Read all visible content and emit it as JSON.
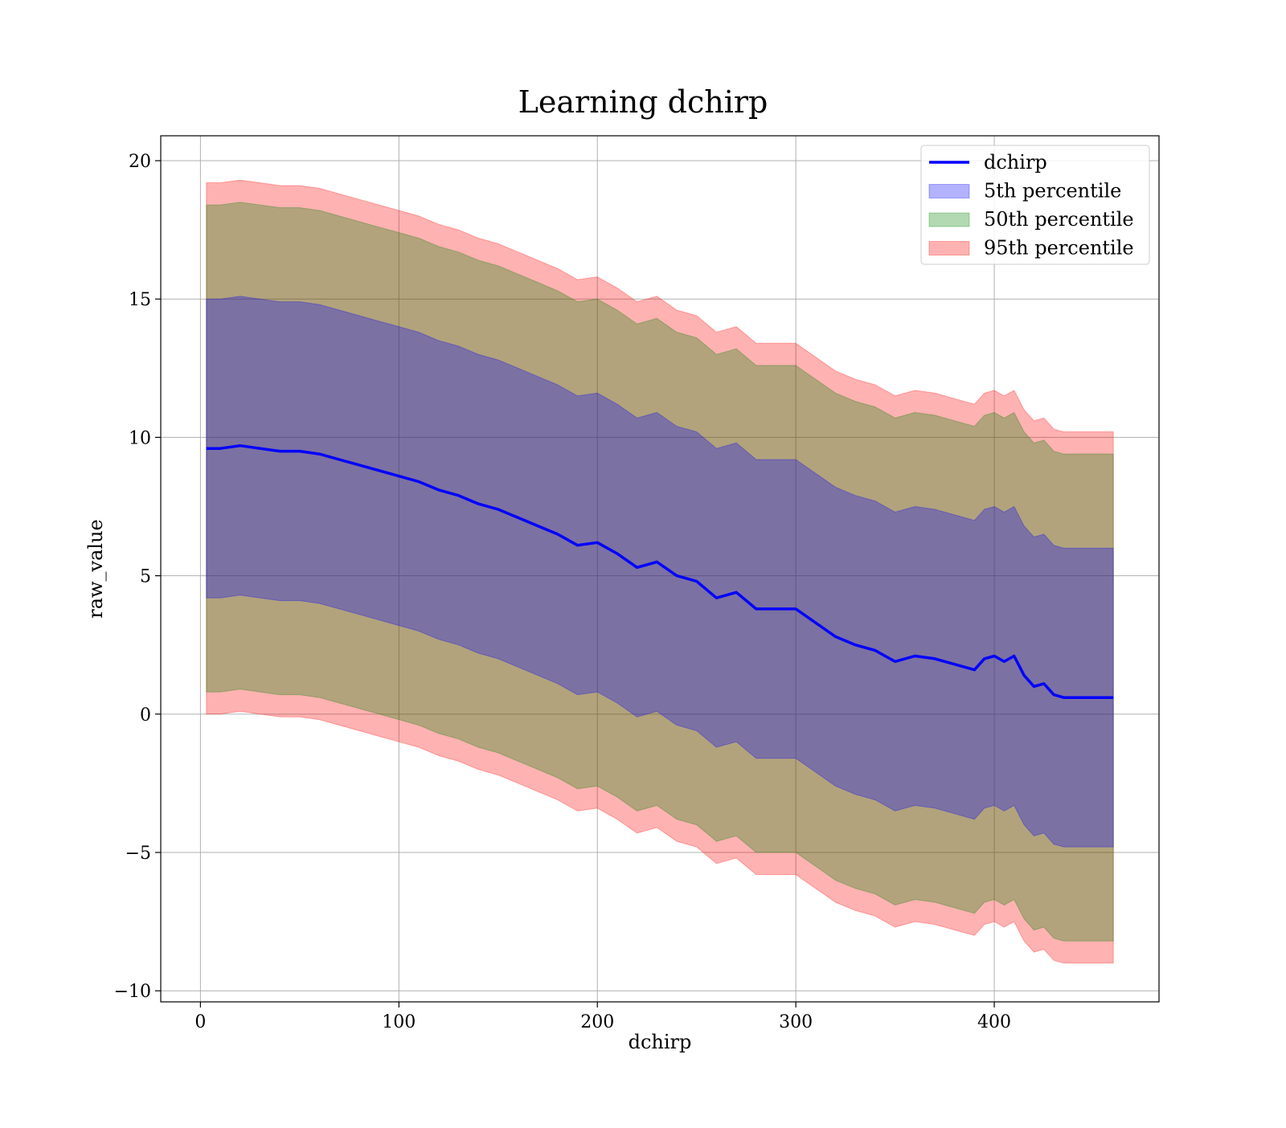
{
  "chart_data": {
    "type": "line",
    "title": "Learning dchirp",
    "xlabel": "dchirp",
    "ylabel": "raw_value",
    "xlim": [
      -20,
      483
    ],
    "ylim": [
      -10.4,
      20.9
    ],
    "x_ticks": [
      0,
      100,
      200,
      300,
      400
    ],
    "y_ticks": [
      -10,
      -5,
      0,
      5,
      10,
      15,
      20
    ],
    "x_tick_labels": [
      "0",
      "100",
      "200",
      "300",
      "400"
    ],
    "y_tick_labels": [
      "−10",
      "−5",
      "0",
      "5",
      "10",
      "15",
      "20"
    ],
    "grid": true,
    "legend_position": "top-right",
    "series": [
      {
        "name": "dchirp",
        "kind": "line",
        "color": "#0000ff",
        "x": [
          3,
          10,
          20,
          30,
          40,
          50,
          60,
          70,
          80,
          90,
          100,
          110,
          120,
          130,
          140,
          150,
          160,
          170,
          180,
          190,
          200,
          210,
          220,
          230,
          240,
          250,
          260,
          270,
          280,
          290,
          300,
          310,
          320,
          330,
          340,
          350,
          360,
          370,
          380,
          390,
          395,
          400,
          405,
          410,
          415,
          420,
          425,
          430,
          435,
          445,
          450,
          460
        ],
        "y": [
          9.6,
          9.6,
          9.7,
          9.6,
          9.5,
          9.5,
          9.4,
          9.2,
          9.0,
          8.8,
          8.6,
          8.4,
          8.1,
          7.9,
          7.6,
          7.4,
          7.1,
          6.8,
          6.5,
          6.1,
          6.2,
          5.8,
          5.3,
          5.5,
          5.0,
          4.8,
          4.2,
          4.4,
          3.8,
          3.8,
          3.8,
          3.3,
          2.8,
          2.5,
          2.3,
          1.9,
          2.1,
          2.0,
          1.8,
          1.6,
          2.0,
          2.1,
          1.9,
          2.1,
          1.4,
          1.0,
          1.1,
          0.7,
          0.6,
          0.6,
          0.6,
          0.6
        ]
      },
      {
        "name": "5th percentile",
        "kind": "band",
        "color": "#0000ff",
        "x": [
          3,
          10,
          20,
          30,
          40,
          50,
          60,
          70,
          80,
          90,
          100,
          110,
          120,
          130,
          140,
          150,
          160,
          170,
          180,
          190,
          200,
          210,
          220,
          230,
          240,
          250,
          260,
          270,
          280,
          290,
          300,
          310,
          320,
          330,
          340,
          350,
          360,
          370,
          380,
          390,
          395,
          400,
          405,
          410,
          415,
          420,
          425,
          430,
          435,
          445,
          450,
          460
        ],
        "upper": [
          15.0,
          15.0,
          15.1,
          15.0,
          14.9,
          14.9,
          14.8,
          14.6,
          14.4,
          14.2,
          14.0,
          13.8,
          13.5,
          13.3,
          13.0,
          12.8,
          12.5,
          12.2,
          11.9,
          11.5,
          11.6,
          11.2,
          10.7,
          10.9,
          10.4,
          10.2,
          9.6,
          9.8,
          9.2,
          9.2,
          9.2,
          8.7,
          8.2,
          7.9,
          7.7,
          7.3,
          7.5,
          7.4,
          7.2,
          7.0,
          7.4,
          7.5,
          7.3,
          7.5,
          6.8,
          6.4,
          6.5,
          6.1,
          6.0,
          6.0,
          6.0,
          6.0
        ],
        "lower": [
          4.2,
          4.2,
          4.3,
          4.2,
          4.1,
          4.1,
          4.0,
          3.8,
          3.6,
          3.4,
          3.2,
          3.0,
          2.7,
          2.5,
          2.2,
          2.0,
          1.7,
          1.4,
          1.1,
          0.7,
          0.8,
          0.4,
          -0.1,
          0.1,
          -0.4,
          -0.6,
          -1.2,
          -1.0,
          -1.6,
          -1.6,
          -1.6,
          -2.1,
          -2.6,
          -2.9,
          -3.1,
          -3.5,
          -3.3,
          -3.4,
          -3.6,
          -3.8,
          -3.4,
          -3.3,
          -3.5,
          -3.3,
          -4.0,
          -4.4,
          -4.3,
          -4.7,
          -4.8,
          -4.8,
          -4.8,
          -4.8
        ]
      },
      {
        "name": "50th percentile",
        "kind": "band",
        "color": "#008000",
        "x": [
          3,
          10,
          20,
          30,
          40,
          50,
          60,
          70,
          80,
          90,
          100,
          110,
          120,
          130,
          140,
          150,
          160,
          170,
          180,
          190,
          200,
          210,
          220,
          230,
          240,
          250,
          260,
          270,
          280,
          290,
          300,
          310,
          320,
          330,
          340,
          350,
          360,
          370,
          380,
          390,
          395,
          400,
          405,
          410,
          415,
          420,
          425,
          430,
          435,
          445,
          450,
          460
        ],
        "upper": [
          18.4,
          18.4,
          18.5,
          18.4,
          18.3,
          18.3,
          18.2,
          18.0,
          17.8,
          17.6,
          17.4,
          17.2,
          16.9,
          16.7,
          16.4,
          16.2,
          15.9,
          15.6,
          15.3,
          14.9,
          15.0,
          14.6,
          14.1,
          14.3,
          13.8,
          13.6,
          13.0,
          13.2,
          12.6,
          12.6,
          12.6,
          12.1,
          11.6,
          11.3,
          11.1,
          10.7,
          10.9,
          10.8,
          10.6,
          10.4,
          10.8,
          10.9,
          10.7,
          10.9,
          10.2,
          9.8,
          9.9,
          9.5,
          9.4,
          9.4,
          9.4,
          9.4
        ],
        "lower": [
          0.8,
          0.8,
          0.9,
          0.8,
          0.7,
          0.7,
          0.6,
          0.4,
          0.2,
          0.0,
          -0.2,
          -0.4,
          -0.7,
          -0.9,
          -1.2,
          -1.4,
          -1.7,
          -2.0,
          -2.3,
          -2.7,
          -2.6,
          -3.0,
          -3.5,
          -3.3,
          -3.8,
          -4.0,
          -4.6,
          -4.4,
          -5.0,
          -5.0,
          -5.0,
          -5.5,
          -6.0,
          -6.3,
          -6.5,
          -6.9,
          -6.7,
          -6.8,
          -7.0,
          -7.2,
          -6.8,
          -6.7,
          -6.9,
          -6.7,
          -7.4,
          -7.8,
          -7.7,
          -8.1,
          -8.2,
          -8.2,
          -8.2,
          -8.2
        ]
      },
      {
        "name": "95th percentile",
        "kind": "band",
        "color": "#ff0000",
        "x": [
          3,
          10,
          20,
          30,
          40,
          50,
          60,
          70,
          80,
          90,
          100,
          110,
          120,
          130,
          140,
          150,
          160,
          170,
          180,
          190,
          200,
          210,
          220,
          230,
          240,
          250,
          260,
          270,
          280,
          290,
          300,
          310,
          320,
          330,
          340,
          350,
          360,
          370,
          380,
          390,
          395,
          400,
          405,
          410,
          415,
          420,
          425,
          430,
          435,
          445,
          450,
          460
        ],
        "upper": [
          19.2,
          19.2,
          19.3,
          19.2,
          19.1,
          19.1,
          19.0,
          18.8,
          18.6,
          18.4,
          18.2,
          18.0,
          17.7,
          17.5,
          17.2,
          17.0,
          16.7,
          16.4,
          16.1,
          15.7,
          15.8,
          15.4,
          14.9,
          15.1,
          14.6,
          14.4,
          13.8,
          14.0,
          13.4,
          13.4,
          13.4,
          12.9,
          12.4,
          12.1,
          11.9,
          11.5,
          11.7,
          11.6,
          11.4,
          11.2,
          11.6,
          11.7,
          11.5,
          11.7,
          11.0,
          10.6,
          10.7,
          10.3,
          10.2,
          10.2,
          10.2,
          10.2
        ],
        "lower": [
          0.0,
          0.0,
          0.1,
          0.0,
          -0.1,
          -0.1,
          -0.2,
          -0.4,
          -0.6,
          -0.8,
          -1.0,
          -1.2,
          -1.5,
          -1.7,
          -2.0,
          -2.2,
          -2.5,
          -2.8,
          -3.1,
          -3.5,
          -3.4,
          -3.8,
          -4.3,
          -4.1,
          -4.6,
          -4.8,
          -5.4,
          -5.2,
          -5.8,
          -5.8,
          -5.8,
          -6.3,
          -6.8,
          -7.1,
          -7.3,
          -7.7,
          -7.5,
          -7.6,
          -7.8,
          -8.0,
          -7.6,
          -7.5,
          -7.7,
          -7.5,
          -8.2,
          -8.6,
          -8.5,
          -8.9,
          -9.0,
          -9.0,
          -9.0,
          -9.0
        ]
      }
    ]
  }
}
